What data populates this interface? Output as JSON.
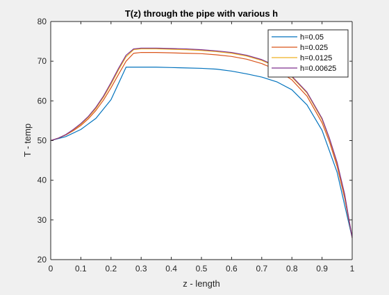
{
  "chart_data": {
    "type": "line",
    "title": "T(z) through the pipe with various h",
    "xlabel": "z - length",
    "ylabel": "T - temp",
    "xlim": [
      0,
      1
    ],
    "ylim": [
      20,
      80
    ],
    "xticks": [
      "0",
      "0.1",
      "0.2",
      "0.3",
      "0.4",
      "0.5",
      "0.6",
      "0.7",
      "0.8",
      "0.9",
      "1"
    ],
    "yticks": [
      "20",
      "30",
      "40",
      "50",
      "60",
      "70",
      "80"
    ],
    "grid": false,
    "legend_position": "top-right",
    "series": [
      {
        "name": "h=0.05",
        "color": "#0072bd",
        "x": [
          0,
          0.05,
          0.1,
          0.15,
          0.2,
          0.25,
          0.3,
          0.35,
          0.4,
          0.45,
          0.5,
          0.55,
          0.6,
          0.65,
          0.7,
          0.75,
          0.8,
          0.85,
          0.9,
          0.95,
          1
        ],
        "y": [
          50,
          51,
          52.8,
          55.6,
          60.3,
          68.5,
          68.5,
          68.5,
          68.4,
          68.3,
          68.2,
          68,
          67.5,
          66.8,
          66,
          64.8,
          62.8,
          59,
          52.6,
          42,
          25.5
        ]
      },
      {
        "name": "h=0.025",
        "color": "#d95319",
        "x": [
          0,
          0.025,
          0.05,
          0.075,
          0.1,
          0.125,
          0.15,
          0.175,
          0.2,
          0.225,
          0.25,
          0.275,
          0.3,
          0.35,
          0.4,
          0.45,
          0.5,
          0.55,
          0.6,
          0.65,
          0.7,
          0.75,
          0.8,
          0.85,
          0.9,
          0.925,
          0.95,
          0.975,
          1
        ],
        "y": [
          50,
          50.6,
          51.4,
          52.5,
          53.8,
          55.5,
          57.6,
          60.2,
          63.3,
          66.7,
          70,
          72,
          72.2,
          72.2,
          72.1,
          72,
          71.9,
          71.6,
          71.2,
          70.5,
          69.4,
          67.8,
          65.3,
          61.2,
          54.5,
          49.6,
          43.5,
          35.5,
          25.5
        ]
      },
      {
        "name": "h=0.0125",
        "color": "#edb120",
        "x": [
          0,
          0.025,
          0.05,
          0.075,
          0.1,
          0.125,
          0.15,
          0.175,
          0.2,
          0.225,
          0.25,
          0.275,
          0.3,
          0.35,
          0.4,
          0.45,
          0.5,
          0.55,
          0.6,
          0.65,
          0.7,
          0.75,
          0.8,
          0.85,
          0.9,
          0.925,
          0.95,
          0.975,
          1
        ],
        "y": [
          50,
          50.6,
          51.5,
          52.7,
          54.1,
          55.9,
          58.1,
          60.9,
          64.2,
          67.8,
          71.1,
          72.9,
          73.1,
          73.1,
          73,
          72.9,
          72.7,
          72.4,
          72,
          71.3,
          70.2,
          68.5,
          66,
          62,
          55.3,
          50.3,
          44.2,
          36.2,
          25.5
        ]
      },
      {
        "name": "h=0.00625",
        "color": "#7e2f8e",
        "x": [
          0,
          0.025,
          0.05,
          0.075,
          0.1,
          0.125,
          0.15,
          0.175,
          0.2,
          0.225,
          0.25,
          0.275,
          0.3,
          0.35,
          0.4,
          0.45,
          0.5,
          0.55,
          0.6,
          0.65,
          0.7,
          0.75,
          0.8,
          0.85,
          0.9,
          0.925,
          0.95,
          0.975,
          1
        ],
        "y": [
          50,
          50.6,
          51.5,
          52.8,
          54.3,
          56.1,
          58.4,
          61.2,
          64.6,
          68.2,
          71.5,
          73.1,
          73.3,
          73.3,
          73.2,
          73.1,
          72.9,
          72.6,
          72.2,
          71.5,
          70.4,
          68.7,
          66.2,
          62.2,
          55.6,
          50.5,
          44.5,
          36.5,
          25.5
        ]
      }
    ]
  }
}
